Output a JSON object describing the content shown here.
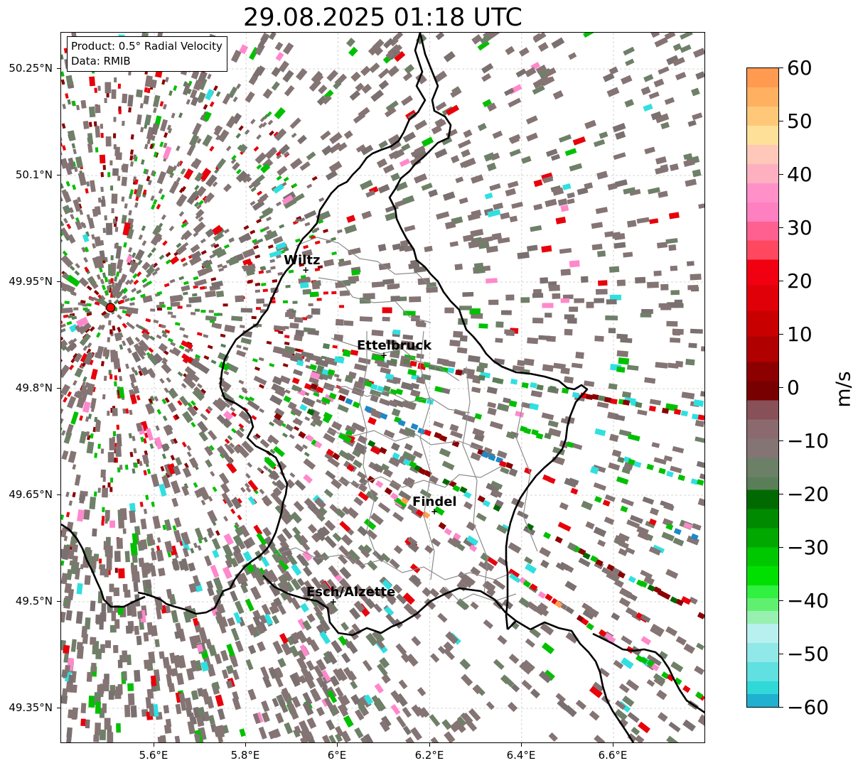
{
  "title": "29.08.2025 01:18 UTC",
  "info": {
    "product": "Product: 0.5° Radial Velocity",
    "data": "Data: RMIB"
  },
  "axes": {
    "lat_ticks": [
      "50.25°N",
      "50.1°N",
      "49.95°N",
      "49.8°N",
      "49.65°N",
      "49.5°N",
      "49.35°N"
    ],
    "lon_ticks": [
      "5.6°E",
      "5.8°E",
      "6°E",
      "6.2°E",
      "6.4°E",
      "6.6°E"
    ],
    "gridlines": true
  },
  "cities": [
    {
      "name": "Wiltz",
      "lon": 5.93,
      "lat": 49.967
    },
    {
      "name": "Ettelbruck",
      "lon": 6.1,
      "lat": 49.847
    },
    {
      "name": "Findel",
      "lon": 6.21,
      "lat": 49.627
    },
    {
      "name": "Esch/Alzette",
      "lon": 5.99,
      "lat": 49.5
    }
  ],
  "radar_site": {
    "lon": 5.505,
    "lat": 49.914,
    "color": "#ff0000"
  },
  "colorbar": {
    "label": "m/s",
    "ticks": [
      "60",
      "50",
      "40",
      "30",
      "20",
      "10",
      "0",
      "−10",
      "−20",
      "−30",
      "−40",
      "−50",
      "−60"
    ],
    "min": -60,
    "max": 60
  },
  "colors": {
    "zero_band": "#857474",
    "outbound_dark": "#8b0000",
    "outbound_red": "#e8000b",
    "outbound_pink": "#ff88cc",
    "outbound_orange": "#ffa050",
    "inbound_green": "#00c000",
    "inbound_cyan": "#30e0e0",
    "inbound_blue": "#1e88c8",
    "border_national": "#000000",
    "border_canton": "#8c8c8c"
  }
}
